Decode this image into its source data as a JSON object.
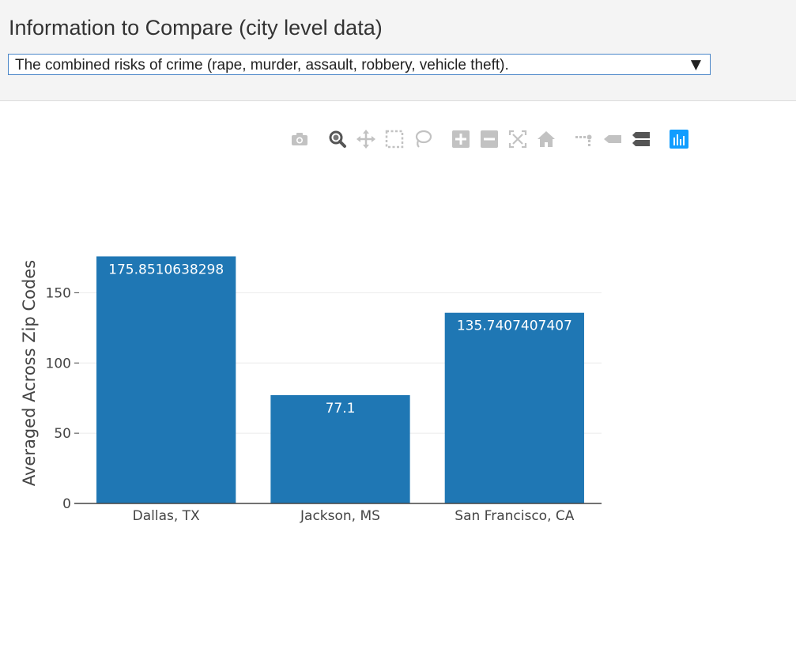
{
  "header": {
    "title": "Information to Compare (city level data)",
    "selected_option": "The combined risks of crime (rape, murder, assault, robbery, vehicle theft).",
    "arrow": "▼"
  },
  "modebar": {
    "buttons": [
      {
        "name": "camera-icon",
        "active": false
      },
      {
        "name": "zoom-icon",
        "active": true
      },
      {
        "name": "pan-icon",
        "active": false
      },
      {
        "name": "box-select-icon",
        "active": false
      },
      {
        "name": "lasso-select-icon",
        "active": false
      },
      {
        "name": "zoom-in-icon",
        "active": false
      },
      {
        "name": "zoom-out-icon",
        "active": false
      },
      {
        "name": "autoscale-icon",
        "active": false
      },
      {
        "name": "reset-axes-icon",
        "active": false
      },
      {
        "name": "spike-lines-icon",
        "active": false
      },
      {
        "name": "hover-closest-icon",
        "active": false
      },
      {
        "name": "hover-compare-icon",
        "active": false
      },
      {
        "name": "plotly-logo-icon",
        "active": false
      }
    ]
  },
  "chart_data": {
    "type": "bar",
    "categories": [
      "Dallas, TX",
      "Jackson, MS",
      "San Francisco, CA"
    ],
    "values": [
      175.8510638298,
      77.1,
      135.7407407407
    ],
    "value_labels": [
      "175.8510638298",
      "77.1",
      "135.7407407407"
    ],
    "title": "",
    "xlabel": "",
    "ylabel": "Averaged Across Zip Codes",
    "ylim": [
      0,
      185
    ],
    "yticks": [
      0,
      50,
      100,
      150
    ],
    "grid": true,
    "bar_color": "#1f77b4",
    "label_color": "#ffffff"
  }
}
